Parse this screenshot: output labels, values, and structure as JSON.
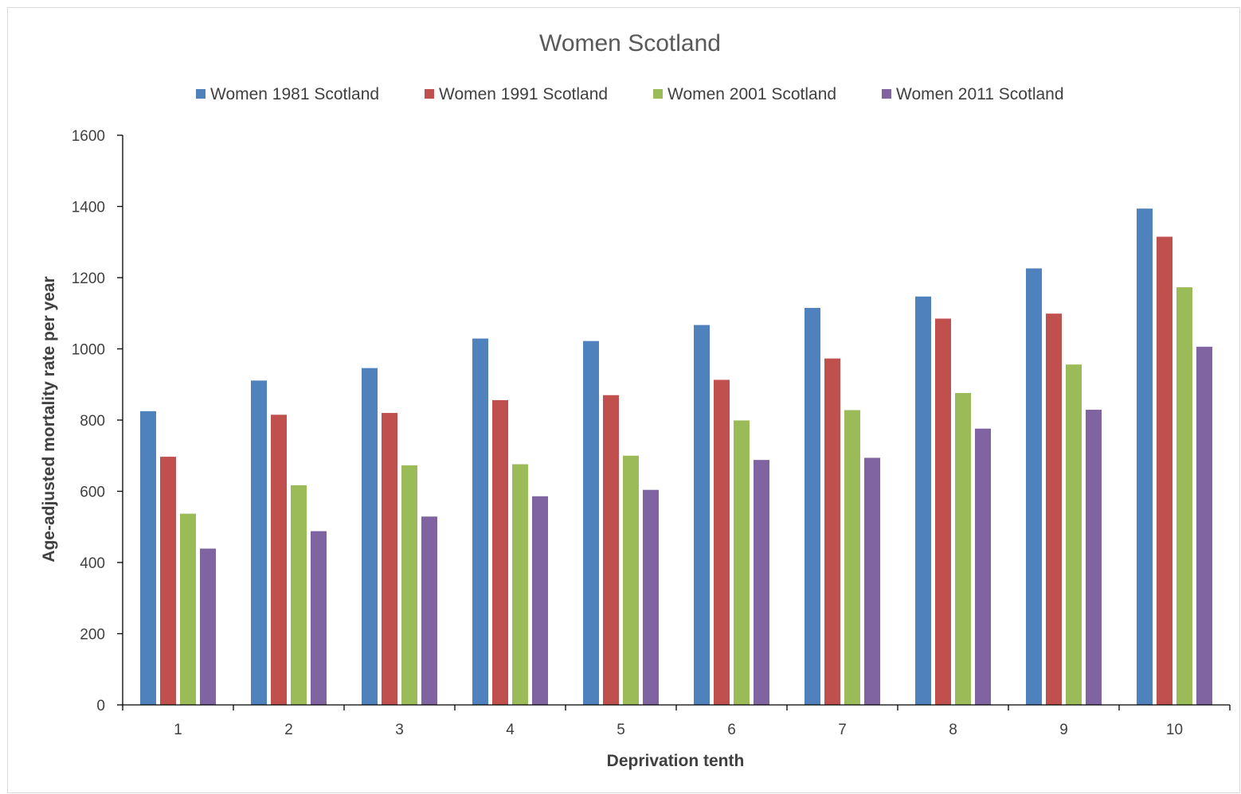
{
  "chart_data": {
    "type": "bar",
    "title": "Women Scotland",
    "xlabel": "Deprivation tenth",
    "ylabel": "Age-adjusted mortality rate per year",
    "categories": [
      "1",
      "2",
      "3",
      "4",
      "5",
      "6",
      "7",
      "8",
      "9",
      "10"
    ],
    "ylim": [
      0,
      1600
    ],
    "yticks": [
      0,
      200,
      400,
      600,
      800,
      1000,
      1200,
      1400,
      1600
    ],
    "grid": false,
    "legend_position": "top",
    "series": [
      {
        "name": "Women 1981 Scotland",
        "color": "#4f81bd",
        "values": [
          825,
          911,
          946,
          1029,
          1022,
          1067,
          1115,
          1147,
          1226,
          1394
        ]
      },
      {
        "name": "Women 1991 Scotland",
        "color": "#c0504d",
        "values": [
          697,
          815,
          820,
          856,
          870,
          913,
          973,
          1085,
          1099,
          1315
        ]
      },
      {
        "name": "Women 2001 Scotland",
        "color": "#9bbb59",
        "values": [
          537,
          617,
          673,
          676,
          700,
          799,
          828,
          876,
          956,
          1173
        ]
      },
      {
        "name": "Women 2011 Scotland",
        "color": "#8064a2",
        "values": [
          439,
          488,
          529,
          586,
          604,
          688,
          694,
          776,
          829,
          1006
        ]
      }
    ]
  }
}
